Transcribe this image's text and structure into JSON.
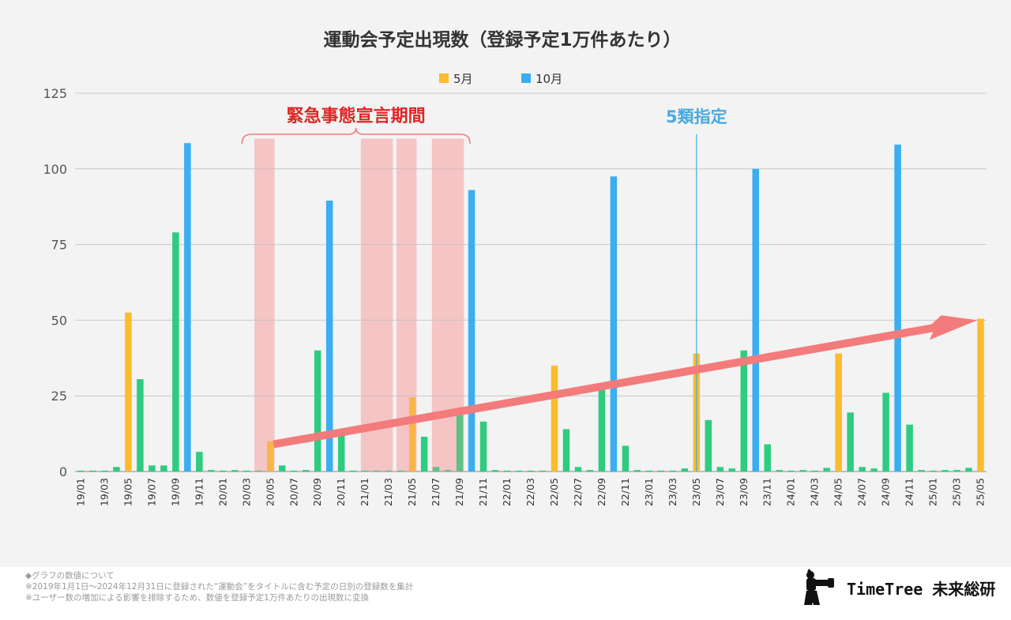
{
  "chart_data": {
    "type": "bar",
    "title": "運動会予定出現数（登録予定1万件あたり）",
    "legend": [
      {
        "name": "5月",
        "color": "#fbbc2d"
      },
      {
        "name": "10月",
        "color": "#3aaef0"
      }
    ],
    "default_color": "#2ecc80",
    "ylim": [
      0,
      125
    ],
    "yticks": [
      "0",
      "25",
      "50",
      "75",
      "100",
      "125"
    ],
    "categories": [
      "19/01",
      "19/02",
      "19/03",
      "19/04",
      "19/05",
      "19/06",
      "19/07",
      "19/08",
      "19/09",
      "19/10",
      "19/11",
      "19/12",
      "20/01",
      "20/02",
      "20/03",
      "20/04",
      "20/05",
      "20/06",
      "20/07",
      "20/08",
      "20/09",
      "20/10",
      "20/11",
      "20/12",
      "21/01",
      "21/02",
      "21/03",
      "21/04",
      "21/05",
      "21/06",
      "21/07",
      "21/08",
      "21/09",
      "21/10",
      "21/11",
      "21/12",
      "22/01",
      "22/02",
      "22/03",
      "22/04",
      "22/05",
      "22/06",
      "22/07",
      "22/08",
      "22/09",
      "22/10",
      "22/11",
      "22/12",
      "23/01",
      "23/02",
      "23/03",
      "23/04",
      "23/05",
      "23/06",
      "23/07",
      "23/08",
      "23/09",
      "23/10",
      "23/11",
      "23/12",
      "24/01",
      "24/02",
      "24/03",
      "24/04",
      "24/05",
      "24/06",
      "24/07",
      "24/08",
      "24/09",
      "24/10",
      "24/11",
      "24/12",
      "25/01",
      "25/02",
      "25/03",
      "25/04",
      "25/05"
    ],
    "values": [
      0.3,
      0.3,
      0.3,
      1.5,
      52.5,
      30.5,
      2,
      2,
      79,
      108.5,
      6.5,
      0.5,
      0.3,
      0.5,
      0.3,
      0.3,
      10,
      2,
      0.3,
      0.5,
      40,
      89.5,
      12.5,
      0.3,
      0,
      0.3,
      0.3,
      0.3,
      24.5,
      11.5,
      1.5,
      0.5,
      20,
      93,
      16.5,
      0.5,
      0.3,
      0.3,
      0.3,
      0.3,
      35,
      14,
      1.5,
      0.5,
      27,
      97.5,
      8.5,
      0.5,
      0.3,
      0.3,
      0.3,
      1,
      39,
      17,
      1.5,
      1,
      40,
      100,
      9,
      0.5,
      0.3,
      0.5,
      0.3,
      1.2,
      39,
      19.5,
      1.5,
      1,
      26,
      108,
      15.5,
      0.5,
      0.3,
      0.5,
      0.5,
      1.2,
      50.5
    ],
    "xtick_labels": [
      "19/01",
      "19/03",
      "19/05",
      "19/07",
      "19/09",
      "19/11",
      "20/01",
      "20/03",
      "20/05",
      "20/07",
      "20/09",
      "20/11",
      "21/01",
      "21/03",
      "21/05",
      "21/07",
      "21/09",
      "21/11",
      "22/01",
      "22/03",
      "22/05",
      "22/07",
      "22/09",
      "22/11",
      "23/01",
      "23/03",
      "23/05",
      "23/07",
      "23/09",
      "23/11",
      "24/01",
      "24/03",
      "24/05",
      "24/07",
      "24/09",
      "24/11",
      "25/01",
      "25/03",
      "25/05"
    ],
    "emergency_periods": [
      [
        "20/04",
        "20/05"
      ],
      [
        "21/01",
        "21/03"
      ],
      [
        "21/04",
        "21/05"
      ],
      [
        "21/07",
        "21/09"
      ]
    ],
    "emergency_label": "緊急事態宣言期間",
    "class5_marker": "23/05",
    "class5_label": "5類指定",
    "trend_arrow": {
      "from": [
        "20/05",
        9
      ],
      "to": [
        "25/05",
        50
      ]
    }
  },
  "footnote": {
    "heading": "◆グラフの数値について",
    "line1": "※2019年1月1日〜2024年12月31日に登録された“運動会”をタイトルに含む予定の日別の登録数を集計",
    "line2": "※ユーザー数の増加による影響を排除するため、数値を登録予定1万件あたりの出現数に変換"
  },
  "brand": {
    "name": "TimeTree 未来総研"
  }
}
